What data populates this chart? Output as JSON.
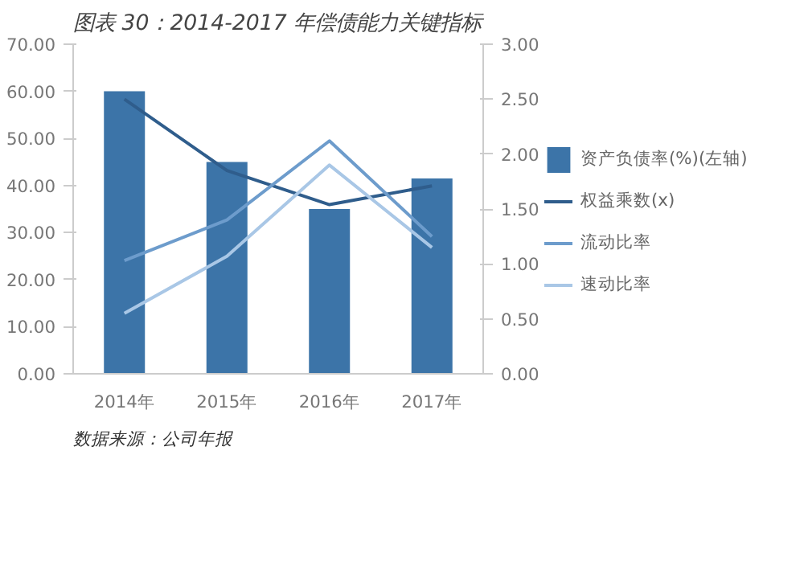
{
  "chart_data": {
    "type": "bar",
    "title": "图表 30：2014-2017 年偿债能力关键指标",
    "categories": [
      "2014年",
      "2015年",
      "2016年",
      "2017年"
    ],
    "series": [
      {
        "name": "资产负债率(%)(左轴)",
        "color": "#3c74a8",
        "values": [
          60.0,
          45.0,
          35.0,
          41.5
        ]
      },
      {
        "name": "权益乘数(x)",
        "type": "line",
        "axis": "y2",
        "color": "#2f5d8c",
        "values": [
          2.5,
          1.85,
          1.54,
          1.71
        ]
      },
      {
        "name": "流动比率",
        "type": "line",
        "axis": "y2",
        "color": "#6d9ccc",
        "values": [
          1.03,
          1.4,
          2.12,
          1.25
        ]
      },
      {
        "name": "速动比率",
        "type": "line",
        "axis": "y2",
        "color": "#a9c7e6",
        "values": [
          0.55,
          1.07,
          1.9,
          1.15
        ]
      }
    ],
    "ylim": [
      0,
      70
    ],
    "yticks": [
      {
        "value": 0,
        "label": "0.00"
      },
      {
        "value": 10,
        "label": "10.00"
      },
      {
        "value": 20,
        "label": "20.00"
      },
      {
        "value": 30,
        "label": "30.00"
      },
      {
        "value": 40,
        "label": "40.00"
      },
      {
        "value": 50,
        "label": "50.00"
      },
      {
        "value": 60,
        "label": "60.00"
      },
      {
        "value": 70,
        "label": "70.00"
      }
    ],
    "y2lim": [
      0,
      3
    ],
    "y2ticks": [
      {
        "value": 0,
        "label": "0.00"
      },
      {
        "value": 0.5,
        "label": "0.50"
      },
      {
        "value": 1,
        "label": "1.00"
      },
      {
        "value": 1.5,
        "label": "1.50"
      },
      {
        "value": 2,
        "label": "2.00"
      },
      {
        "value": 2.5,
        "label": "2.50"
      },
      {
        "value": 3,
        "label": "3.00"
      }
    ],
    "legend": "right",
    "grid": false,
    "annotations": [
      "数据来源：公司年报"
    ]
  }
}
